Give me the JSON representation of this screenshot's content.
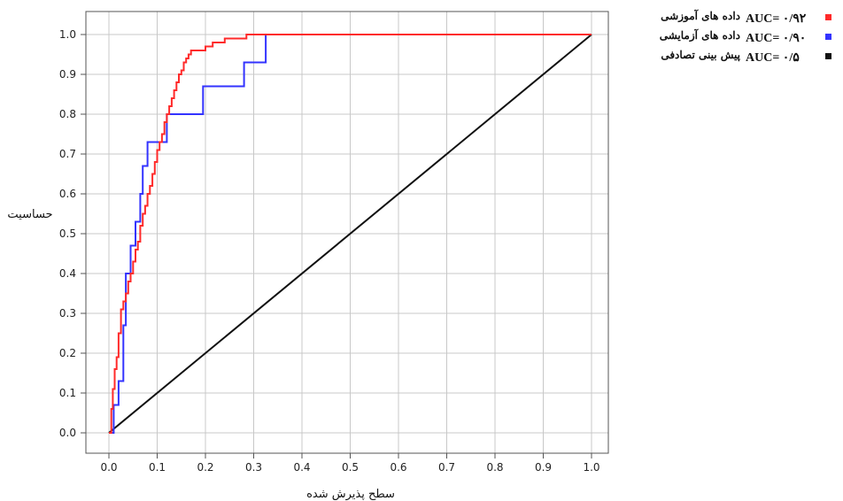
{
  "chart_data": {
    "type": "line",
    "title": "",
    "xlabel": "سطح پذیرش شده",
    "ylabel": "حساسیت",
    "xlim": [
      0,
      1
    ],
    "ylim": [
      0,
      1
    ],
    "x_ticks": [
      "0.0",
      "0.1",
      "0.2",
      "0.3",
      "0.4",
      "0.5",
      "0.6",
      "0.7",
      "0.8",
      "0.9",
      "1.0"
    ],
    "y_ticks": [
      "0.0",
      "0.1",
      "0.2",
      "0.3",
      "0.4",
      "0.5",
      "0.6",
      "0.7",
      "0.8",
      "0.9",
      "1.0"
    ],
    "grid": true,
    "legend_position": "top-right",
    "series": [
      {
        "name": "داده های آموزشی",
        "auc_label": "AUC= ۰/۹۲",
        "color": "#ff2a2a",
        "x": [
          0,
          0.005,
          0.005,
          0.008,
          0.008,
          0.012,
          0.012,
          0.016,
          0.016,
          0.02,
          0.02,
          0.025,
          0.025,
          0.03,
          0.03,
          0.035,
          0.035,
          0.04,
          0.04,
          0.045,
          0.045,
          0.05,
          0.05,
          0.055,
          0.055,
          0.06,
          0.06,
          0.065,
          0.065,
          0.07,
          0.07,
          0.075,
          0.075,
          0.08,
          0.08,
          0.085,
          0.085,
          0.09,
          0.09,
          0.095,
          0.095,
          0.1,
          0.1,
          0.105,
          0.105,
          0.11,
          0.11,
          0.115,
          0.115,
          0.12,
          0.12,
          0.125,
          0.125,
          0.13,
          0.13,
          0.135,
          0.135,
          0.14,
          0.14,
          0.145,
          0.145,
          0.15,
          0.15,
          0.155,
          0.155,
          0.16,
          0.16,
          0.165,
          0.165,
          0.17,
          0.17,
          0.18,
          0.18,
          0.2,
          0.2,
          0.215,
          0.215,
          0.24,
          0.24,
          0.285,
          0.285,
          0.3,
          0.3,
          1.0
        ],
        "y": [
          0,
          0,
          0.06,
          0.06,
          0.11,
          0.11,
          0.16,
          0.16,
          0.19,
          0.19,
          0.25,
          0.25,
          0.31,
          0.31,
          0.33,
          0.33,
          0.35,
          0.35,
          0.38,
          0.38,
          0.4,
          0.4,
          0.43,
          0.43,
          0.46,
          0.46,
          0.48,
          0.48,
          0.52,
          0.52,
          0.55,
          0.55,
          0.57,
          0.57,
          0.6,
          0.6,
          0.62,
          0.62,
          0.65,
          0.65,
          0.68,
          0.68,
          0.71,
          0.71,
          0.73,
          0.73,
          0.75,
          0.75,
          0.78,
          0.78,
          0.8,
          0.8,
          0.82,
          0.82,
          0.84,
          0.84,
          0.86,
          0.86,
          0.88,
          0.88,
          0.9,
          0.9,
          0.91,
          0.91,
          0.93,
          0.93,
          0.94,
          0.94,
          0.95,
          0.95,
          0.96,
          0.96,
          0.96,
          0.96,
          0.97,
          0.97,
          0.98,
          0.98,
          0.99,
          0.99,
          1.0,
          1.0,
          1.0,
          1.0
        ]
      },
      {
        "name": "داده های آزمایشی",
        "auc_label": "AUC= ۰/۹۰",
        "color": "#3333ff",
        "x": [
          0,
          0.01,
          0.01,
          0.02,
          0.02,
          0.03,
          0.03,
          0.035,
          0.035,
          0.045,
          0.045,
          0.055,
          0.055,
          0.065,
          0.065,
          0.07,
          0.07,
          0.08,
          0.08,
          0.1,
          0.1,
          0.12,
          0.12,
          0.13,
          0.13,
          0.195,
          0.195,
          0.28,
          0.28,
          0.325,
          0.325,
          1.0
        ],
        "y": [
          0,
          0,
          0.07,
          0.07,
          0.13,
          0.13,
          0.27,
          0.27,
          0.4,
          0.4,
          0.47,
          0.47,
          0.53,
          0.53,
          0.6,
          0.6,
          0.67,
          0.67,
          0.73,
          0.73,
          0.73,
          0.73,
          0.8,
          0.8,
          0.8,
          0.8,
          0.87,
          0.87,
          0.93,
          0.93,
          1.0,
          1.0
        ]
      },
      {
        "name": "پیش بینی تصادفی",
        "auc_label": "AUC= ۰/۵",
        "color": "#111111",
        "x": [
          0,
          1
        ],
        "y": [
          0,
          1
        ]
      }
    ]
  },
  "legend": {
    "items": [
      {
        "label": "داده های آموزشی",
        "auc": "AUC= ۰/۹۲",
        "color": "#ff2a2a"
      },
      {
        "label": "داده های آزمایشی",
        "auc": "AUC= ۰/۹۰",
        "color": "#3333ff"
      },
      {
        "label": "پیش بینی تصادفی",
        "auc": "AUC= ۰/۵",
        "color": "#111111"
      }
    ]
  }
}
